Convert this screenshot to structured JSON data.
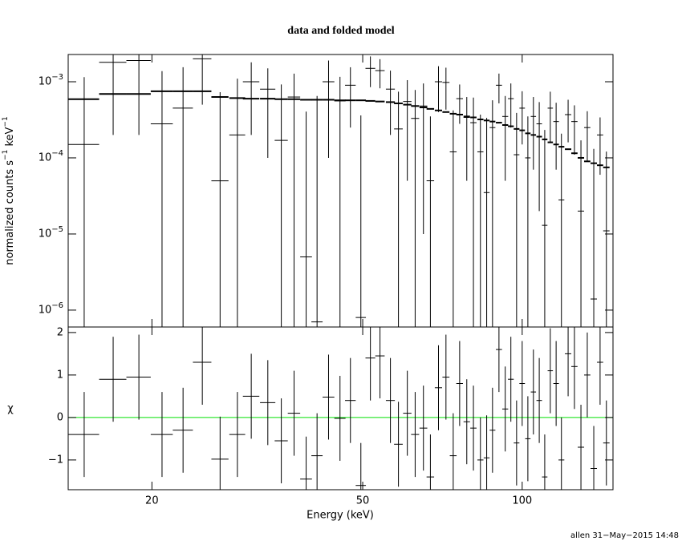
{
  "chart_data": [
    {
      "type": "errorbar",
      "title": "data and folded model",
      "ylabel": "normalized counts s−1 keV−1",
      "log_x": true,
      "log_y": true,
      "color": "#000000",
      "xlim": [
        13.9,
        148.4
      ],
      "ylim": [
        6e-07,
        0.00228
      ],
      "yticks": [
        {
          "value": 0.001,
          "label": "10−3"
        },
        {
          "value": 0.0001,
          "label": "10−4"
        },
        {
          "value": 1e-05,
          "label": "10−5"
        },
        {
          "value": 1e-06,
          "label": "10−6"
        }
      ],
      "x": [
        14.9,
        16.9,
        18.9,
        20.9,
        22.9,
        24.9,
        26.9,
        29.0,
        30.8,
        33.1,
        35.1,
        37.1,
        39.1,
        41.0,
        43.1,
        45.3,
        47.4,
        49.6,
        51.7,
        53.9,
        56.4,
        58.4,
        60.7,
        62.8,
        65.1,
        67.1,
        69.5,
        71.8,
        74.1,
        76.2,
        78.6,
        80.9,
        83.4,
        85.7,
        87.9,
        90.4,
        92.9,
        95.2,
        97.6,
        100,
        102.5,
        105,
        107.7,
        110.3,
        113,
        115.9,
        118.6,
        122.1,
        125.5,
        129.1,
        132.7,
        136.5,
        140.3,
        144.2
      ],
      "xerr": [
        1,
        1,
        1,
        1,
        1,
        1,
        1,
        1,
        1.1,
        1.1,
        1,
        1,
        1,
        1,
        1.1,
        1.1,
        1.1,
        1.1,
        1.1,
        1.1,
        1.1,
        1.1,
        1.1,
        1.1,
        1.1,
        1.1,
        1.1,
        1.1,
        1.1,
        1.1,
        1.1,
        1.1,
        1.1,
        1.1,
        1.1,
        1.2,
        1.2,
        1.2,
        1.2,
        1.2,
        1.2,
        1.2,
        1.3,
        1.3,
        1.3,
        1.4,
        1.5,
        1.7,
        1.7,
        1.8,
        1.8,
        1.9,
        1.9,
        2.0
      ],
      "values": [
        0.00015,
        0.0018,
        0.0019,
        0.00028,
        0.00045,
        0.002,
        5e-05,
        0.0002,
        0.001,
        0.0008,
        0.00017,
        0.00063,
        5e-06,
        7e-07,
        0.001,
        0.00056,
        0.0009,
        8e-07,
        0.0015,
        0.0014,
        0.0008,
        0.00024,
        0.00055,
        0.00033,
        0.00048,
        5e-05,
        0.001,
        0.00098,
        0.00012,
        0.0006,
        0.00034,
        0.00029,
        0.00012,
        3.5e-05,
        0.00025,
        0.0009,
        0.00035,
        0.0006,
        0.00011,
        0.00045,
        0.0001,
        0.00035,
        0.00028,
        1.3e-05,
        0.00045,
        0.0003,
        2.8e-05,
        0.00037,
        0.0003,
        2e-05,
        0.00025,
        1.4e-06,
        0.0002,
        1.1e-05
      ],
      "errors": [
        0.001,
        0.0016,
        0.0017,
        0.0011,
        0.0011,
        0.0015,
        0.00068,
        0.0009,
        0.0008,
        0.0007,
        0.00075,
        0.00065,
        0.0004,
        0.00065,
        0.0009,
        0.0006,
        0.00065,
        0.00036,
        0.00065,
        0.00058,
        0.0006,
        0.0005,
        0.0005,
        0.00045,
        0.00047,
        0.0003,
        0.0006,
        0.00055,
        0.0003,
        0.00032,
        0.00029,
        0.00033,
        0.00025,
        0.0003,
        0.00032,
        0.00038,
        0.0003,
        0.00035,
        0.00028,
        0.0003,
        0.00025,
        0.00028,
        0.00026,
        0.00022,
        0.00029,
        0.00023,
        0.00018,
        0.00021,
        0.00019,
        0.00015,
        0.00016,
        0.00013,
        0.00014,
        0.00011
      ],
      "model": [
        0.00059,
        0.00069,
        0.00069,
        0.00075,
        0.00075,
        0.00075,
        0.00063,
        0.00061,
        0.0006,
        0.0006,
        0.00059,
        0.00059,
        0.00058,
        0.00058,
        0.00058,
        0.00057,
        0.00057,
        0.00057,
        0.00056,
        0.00055,
        0.00054,
        0.00052,
        0.0005,
        0.00048,
        0.00046,
        0.00044,
        0.00042,
        0.0004,
        0.00038,
        0.00037,
        0.00035,
        0.00034,
        0.00032,
        0.00031,
        0.0003,
        0.00029,
        0.00027,
        0.00026,
        0.00024,
        0.00023,
        0.00021,
        0.0002,
        0.00019,
        0.000175,
        0.00016,
        0.00015,
        0.00014,
        0.00013,
        0.000115,
        0.0001,
        9e-05,
        8.5e-05,
        8e-05,
        7.5e-05
      ]
    },
    {
      "type": "residual",
      "ylabel": "χ",
      "xlabel": "Energy (keV)",
      "log_x": true,
      "color": "#000000",
      "line_value": 0,
      "line_color": "#00e000",
      "xlim": [
        13.9,
        148.4
      ],
      "ylim": [
        -1.7,
        2.13
      ],
      "xticks": [
        20,
        50,
        100
      ],
      "yticks": [
        {
          "value": -1,
          "label": "−1"
        },
        0,
        1,
        2
      ],
      "x": [
        14.9,
        16.9,
        18.9,
        20.9,
        22.9,
        24.9,
        26.9,
        29.0,
        30.8,
        33.1,
        35.1,
        37.1,
        39.1,
        41.0,
        43.1,
        45.3,
        47.4,
        49.6,
        51.7,
        53.9,
        56.4,
        58.4,
        60.7,
        62.8,
        65.1,
        67.1,
        69.5,
        71.8,
        74.1,
        76.2,
        78.6,
        80.9,
        83.4,
        85.7,
        87.9,
        90.4,
        92.9,
        95.2,
        97.6,
        100,
        102.5,
        105,
        107.7,
        110.3,
        113,
        115.9,
        118.6,
        122.1,
        125.5,
        129.1,
        132.7,
        136.5,
        140.3,
        144.2
      ],
      "xerr": [
        1,
        1,
        1,
        1,
        1,
        1,
        1,
        1,
        1.1,
        1.1,
        1,
        1,
        1,
        1,
        1.1,
        1.1,
        1.1,
        1.1,
        1.1,
        1.1,
        1.1,
        1.1,
        1.1,
        1.1,
        1.1,
        1.1,
        1.1,
        1.1,
        1.1,
        1.1,
        1.1,
        1.1,
        1.1,
        1.1,
        1.1,
        1.2,
        1.2,
        1.2,
        1.2,
        1.2,
        1.2,
        1.2,
        1.3,
        1.3,
        1.3,
        1.4,
        1.5,
        1.7,
        1.7,
        1.8,
        1.8,
        1.9,
        1.9,
        2.0
      ],
      "values": [
        -0.4,
        0.9,
        0.95,
        -0.4,
        -0.3,
        1.3,
        -0.98,
        -0.4,
        0.5,
        0.35,
        -0.55,
        0.1,
        -1.45,
        -0.9,
        0.48,
        -0.02,
        0.4,
        -1.6,
        1.4,
        1.45,
        0.4,
        -0.63,
        0.1,
        -0.4,
        -0.25,
        -1.4,
        0.7,
        0.95,
        -0.9,
        0.8,
        -0.1,
        -0.25,
        -1.0,
        -0.95,
        -0.3,
        1.6,
        0.2,
        0.9,
        -0.6,
        0.8,
        -0.5,
        0.6,
        0.4,
        -1.4,
        1.1,
        0.8,
        -1.0,
        1.5,
        1.2,
        -0.7,
        1.0,
        -1.2,
        1.3,
        -0.6
      ],
      "errors": [
        1,
        1,
        1,
        1,
        1,
        1,
        1,
        1,
        1,
        1,
        1,
        1,
        1,
        1,
        1,
        1,
        1,
        1,
        1,
        1,
        1,
        1,
        1,
        1,
        1,
        1,
        1,
        1,
        1,
        1,
        1,
        1,
        1,
        1,
        1,
        1,
        1,
        1,
        1,
        1,
        1,
        1,
        1,
        1,
        1,
        1,
        1,
        1,
        1,
        1,
        1,
        1,
        1,
        1
      ]
    }
  ],
  "footer": "allen 31−May−2015 14:48"
}
